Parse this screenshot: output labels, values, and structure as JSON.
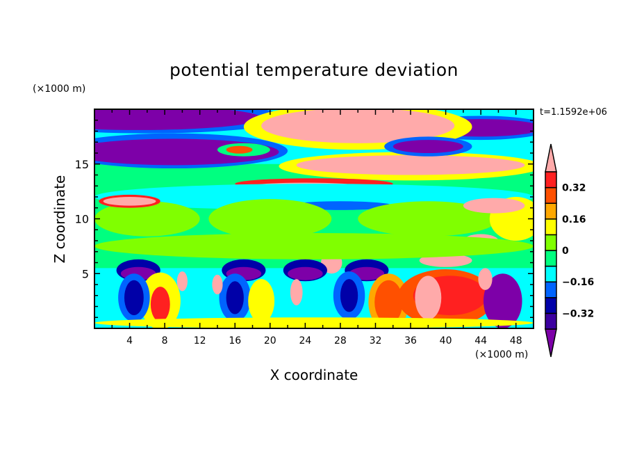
{
  "chart_data": {
    "type": "heatmap",
    "subtype": "filled-contour",
    "title": "potential temperature deviation",
    "xlabel": "X coordinate",
    "ylabel": "Z coordinate",
    "x_unit_label": "(×1000 m)",
    "y_unit_label": "(×1000 m)",
    "time_label": "t=1.1592e+06",
    "xlim": [
      0,
      50
    ],
    "ylim": [
      0,
      20
    ],
    "x_ticks": [
      4,
      8,
      12,
      16,
      20,
      24,
      28,
      32,
      36,
      40,
      44,
      48
    ],
    "x_tick_labels": [
      "4",
      "8",
      "12",
      "16",
      "20",
      "24",
      "28",
      "32",
      "36",
      "40",
      "44",
      "48"
    ],
    "y_ticks": [
      5,
      10,
      15
    ],
    "y_tick_labels": [
      "5",
      "10",
      "15"
    ],
    "colorbar": {
      "levels": [
        -0.4,
        -0.32,
        -0.24,
        -0.16,
        -0.08,
        0,
        0.08,
        0.16,
        0.24,
        0.32,
        0.4
      ],
      "labels": [
        {
          "value": 0.32,
          "text": "0.32"
        },
        {
          "value": 0.16,
          "text": "0.16"
        },
        {
          "value": 0,
          "text": "0"
        },
        {
          "value": -0.16,
          "text": "−0.16"
        },
        {
          "value": -0.32,
          "text": "−0.32"
        }
      ],
      "colors": [
        "#7d00a8",
        "#3c00a0",
        "#0000a8",
        "#0064ff",
        "#00ffff",
        "#00ff80",
        "#80ff00",
        "#ffff00",
        "#ffa800",
        "#ff5000",
        "#ff2020",
        "#ffaaaa"
      ],
      "extend": "both"
    },
    "field_patches": [
      {
        "x0": 0,
        "x1": 50,
        "z0": 15,
        "z1": 20,
        "level": 4
      },
      {
        "x0": 0,
        "x1": 50,
        "z0": 0,
        "z1": 5.5,
        "level": 4
      },
      {
        "cx": 6,
        "cz": 19.2,
        "rx": 16,
        "rz": 1.4,
        "level": 3
      },
      {
        "cx": 5,
        "cz": 19.2,
        "rx": 14,
        "rz": 1.1,
        "level": 0
      },
      {
        "cx": 9,
        "cz": 16.2,
        "rx": 13,
        "rz": 1.6,
        "level": 3
      },
      {
        "cx": 9,
        "cz": 16.1,
        "rx": 12,
        "rz": 1.2,
        "level": 0
      },
      {
        "cx": 17,
        "cz": 16.3,
        "rx": 3,
        "rz": 0.6,
        "level": 5
      },
      {
        "cx": 16.5,
        "cz": 16.3,
        "rx": 1.5,
        "rz": 0.35,
        "level": 9
      },
      {
        "cx": 44,
        "cz": 18.3,
        "rx": 8,
        "rz": 1.1,
        "level": 3
      },
      {
        "cx": 44,
        "cz": 18.3,
        "rx": 7,
        "rz": 0.8,
        "level": 0
      },
      {
        "cx": 30,
        "cz": 18.4,
        "rx": 13,
        "rz": 2.1,
        "level": 7
      },
      {
        "cx": 30,
        "cz": 18.5,
        "rx": 11,
        "rz": 1.6,
        "level": 11
      },
      {
        "cx": 36,
        "cz": 14.8,
        "rx": 15,
        "rz": 1.3,
        "level": 7
      },
      {
        "cx": 36,
        "cz": 14.9,
        "rx": 13,
        "rz": 0.9,
        "level": 11
      },
      {
        "cx": 25,
        "cz": 13.2,
        "rx": 9,
        "rz": 0.5,
        "level": 10
      },
      {
        "cx": 24,
        "cz": 13,
        "rx": 6,
        "rz": 0.3,
        "level": 11
      },
      {
        "cx": 38,
        "cz": 16.6,
        "rx": 5,
        "rz": 0.9,
        "level": 3
      },
      {
        "cx": 38,
        "cz": 16.6,
        "rx": 4,
        "rz": 0.6,
        "level": 0
      },
      {
        "cx": 25,
        "cz": 12,
        "rx": 25,
        "rz": 1.2,
        "level": 4
      },
      {
        "cx": 28,
        "cz": 11.2,
        "rx": 6,
        "rz": 0.4,
        "level": 3
      },
      {
        "cx": 6,
        "cz": 10,
        "rx": 6,
        "rz": 1.6,
        "level": 6
      },
      {
        "cx": 20,
        "cz": 10,
        "rx": 7,
        "rz": 1.8,
        "level": 6
      },
      {
        "cx": 38,
        "cz": 10,
        "rx": 8,
        "rz": 1.6,
        "level": 6
      },
      {
        "cx": 48,
        "cz": 10,
        "rx": 3,
        "rz": 2,
        "level": 7
      },
      {
        "cx": 4,
        "cz": 11.6,
        "rx": 3.5,
        "rz": 0.6,
        "level": 10
      },
      {
        "cx": 4,
        "cz": 11.6,
        "rx": 3,
        "rz": 0.4,
        "level": 11
      },
      {
        "cx": 45.5,
        "cz": 11.2,
        "rx": 3.5,
        "rz": 0.7,
        "level": 11
      },
      {
        "cx": 44,
        "cz": 8,
        "rx": 2,
        "rz": 0.6,
        "level": 11
      },
      {
        "cx": 40,
        "cz": 6.2,
        "rx": 3,
        "rz": 0.6,
        "level": 11
      },
      {
        "cx": 27,
        "cz": 6,
        "rx": 1.2,
        "rz": 1,
        "level": 11
      },
      {
        "cx": 25,
        "cz": 7.5,
        "rx": 25,
        "rz": 1.2,
        "level": 6
      },
      {
        "cx": 5,
        "cz": 5.3,
        "rx": 2.5,
        "rz": 1,
        "level": 2
      },
      {
        "cx": 17,
        "cz": 5.3,
        "rx": 2.5,
        "rz": 1,
        "level": 2
      },
      {
        "cx": 24,
        "cz": 5.3,
        "rx": 2.5,
        "rz": 1,
        "level": 2
      },
      {
        "cx": 31,
        "cz": 5.3,
        "rx": 2.5,
        "rz": 1,
        "level": 2
      },
      {
        "cx": 5,
        "cz": 5,
        "rx": 2,
        "rz": 0.6,
        "level": 0
      },
      {
        "cx": 17,
        "cz": 5,
        "rx": 2,
        "rz": 0.6,
        "level": 0
      },
      {
        "cx": 24,
        "cz": 5,
        "rx": 2,
        "rz": 0.6,
        "level": 0
      },
      {
        "cx": 31,
        "cz": 5,
        "rx": 2,
        "rz": 0.6,
        "level": 0
      },
      {
        "cx": 7.5,
        "cz": 2.5,
        "rx": 2.3,
        "rz": 2.6,
        "level": 7
      },
      {
        "cx": 7.5,
        "cz": 2.2,
        "rx": 1.1,
        "rz": 1.6,
        "level": 10
      },
      {
        "cx": 4.5,
        "cz": 2.8,
        "rx": 1.8,
        "rz": 2.2,
        "level": 3
      },
      {
        "cx": 4.5,
        "cz": 2.8,
        "rx": 1.1,
        "rz": 1.6,
        "level": 2
      },
      {
        "cx": 16,
        "cz": 2.8,
        "rx": 1.8,
        "rz": 2.2,
        "level": 3
      },
      {
        "cx": 16,
        "cz": 2.8,
        "rx": 1,
        "rz": 1.5,
        "level": 2
      },
      {
        "cx": 19,
        "cz": 2.5,
        "rx": 1.5,
        "rz": 2,
        "level": 7
      },
      {
        "cx": 29,
        "cz": 3,
        "rx": 1.8,
        "rz": 2.2,
        "level": 3
      },
      {
        "cx": 29,
        "cz": 3,
        "rx": 1,
        "rz": 1.5,
        "level": 2
      },
      {
        "cx": 33.5,
        "cz": 2.4,
        "rx": 2.3,
        "rz": 2.6,
        "level": 8
      },
      {
        "cx": 33.5,
        "cz": 2.4,
        "rx": 1.6,
        "rz": 2,
        "level": 9
      },
      {
        "cx": 40,
        "cz": 2.8,
        "rx": 5.5,
        "rz": 2.6,
        "level": 9
      },
      {
        "cx": 40.5,
        "cz": 3,
        "rx": 4.2,
        "rz": 1.8,
        "level": 10
      },
      {
        "cx": 38,
        "cz": 2.8,
        "rx": 1.5,
        "rz": 2,
        "level": 11
      },
      {
        "cx": 46.5,
        "cz": 2.5,
        "rx": 2.2,
        "rz": 2.5,
        "level": 0
      },
      {
        "cx": 10,
        "cz": 4.3,
        "rx": 0.6,
        "rz": 0.9,
        "level": 11
      },
      {
        "cx": 14,
        "cz": 4,
        "rx": 0.6,
        "rz": 0.9,
        "level": 11
      },
      {
        "cx": 23,
        "cz": 3.3,
        "rx": 0.7,
        "rz": 1.2,
        "level": 11
      },
      {
        "cx": 44.5,
        "cz": 4.5,
        "rx": 0.8,
        "rz": 1,
        "level": 11
      },
      {
        "cx": 25,
        "cz": 0.5,
        "rx": 25,
        "rz": 0.5,
        "level": 7
      }
    ]
  }
}
